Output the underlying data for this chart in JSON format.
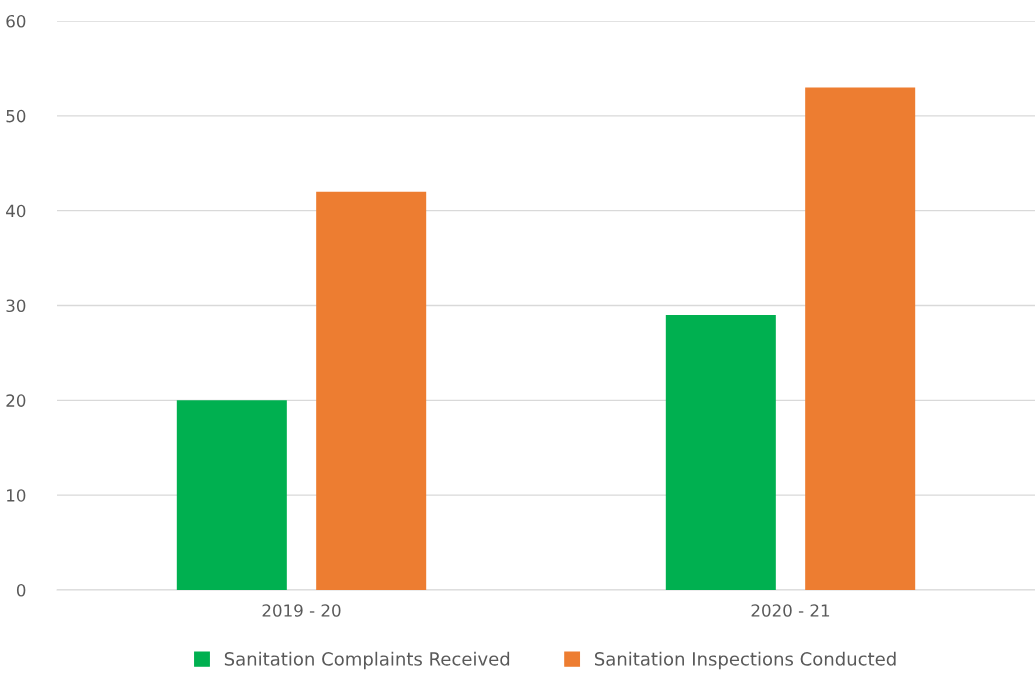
{
  "chart_data": {
    "type": "bar",
    "categories": [
      "2019 - 20",
      "2020 - 21"
    ],
    "series": [
      {
        "name": "Sanitation Complaints Received",
        "color": "#00b050",
        "values": [
          20,
          29
        ]
      },
      {
        "name": "Sanitation Inspections Conducted",
        "color": "#ed7d31",
        "values": [
          42,
          53
        ]
      }
    ],
    "ylim": [
      0,
      60
    ],
    "yticks": [
      0,
      10,
      20,
      30,
      40,
      50,
      60
    ],
    "grid": "y",
    "legend": "bottom"
  }
}
